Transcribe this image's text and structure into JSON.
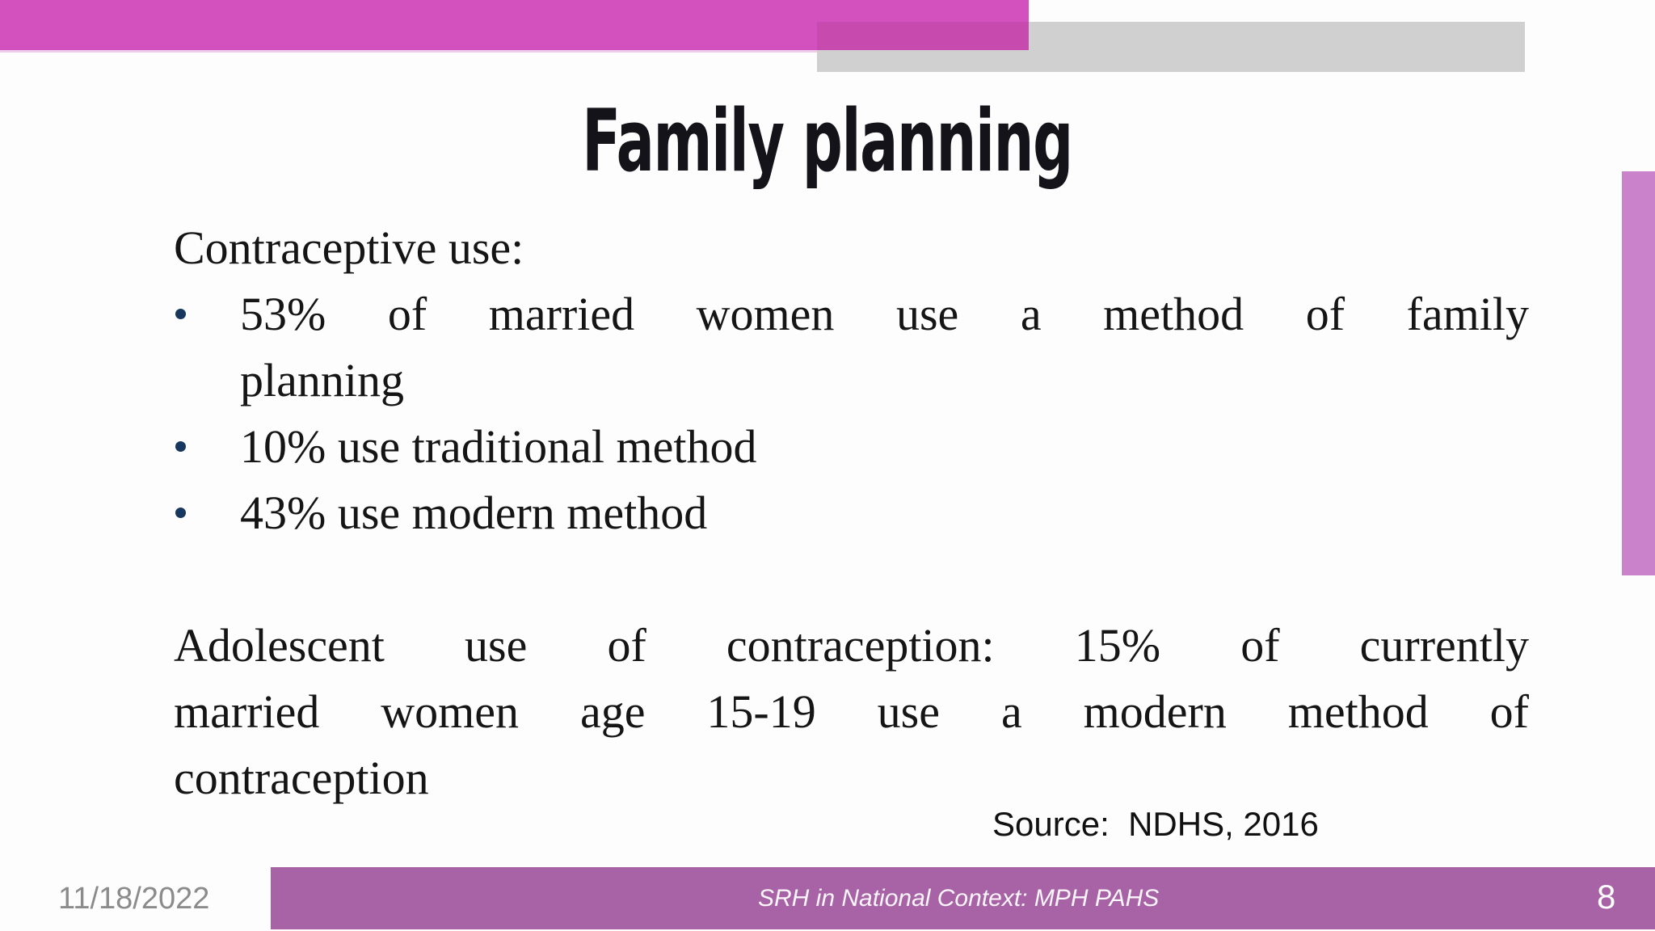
{
  "slide": {
    "title": "Family planning",
    "body": {
      "intro": "Contraceptive use:",
      "bullets": [
        {
          "lines": [
            "53% of married women use a method of family",
            "planning"
          ]
        },
        {
          "lines": [
            "10% use traditional method"
          ]
        },
        {
          "lines": [
            "43% use modern method"
          ]
        }
      ],
      "paragraph": {
        "lines": [
          "Adolescent use of contraception: 15% of currently",
          "married women age 15-19 use a modern method of",
          "contraception"
        ]
      },
      "source": "Source:  NDHS, 2016"
    },
    "footer": {
      "date": "11/18/2022",
      "caption": "SRH in National Context: MPH PAHS",
      "page_number": "8"
    },
    "colors": {
      "top_bar_magenta": "#d351bf",
      "top_bar_overlap": "#c74bae",
      "top_bar_gray": "#d1d0d1",
      "right_bar_pink": "#ca83cb",
      "bottom_bar_purple": "#a763a5",
      "bullet_dot_navy": "#17375e",
      "date_gray": "#8b8b8b",
      "footer_text_white": "#ffffff"
    }
  }
}
